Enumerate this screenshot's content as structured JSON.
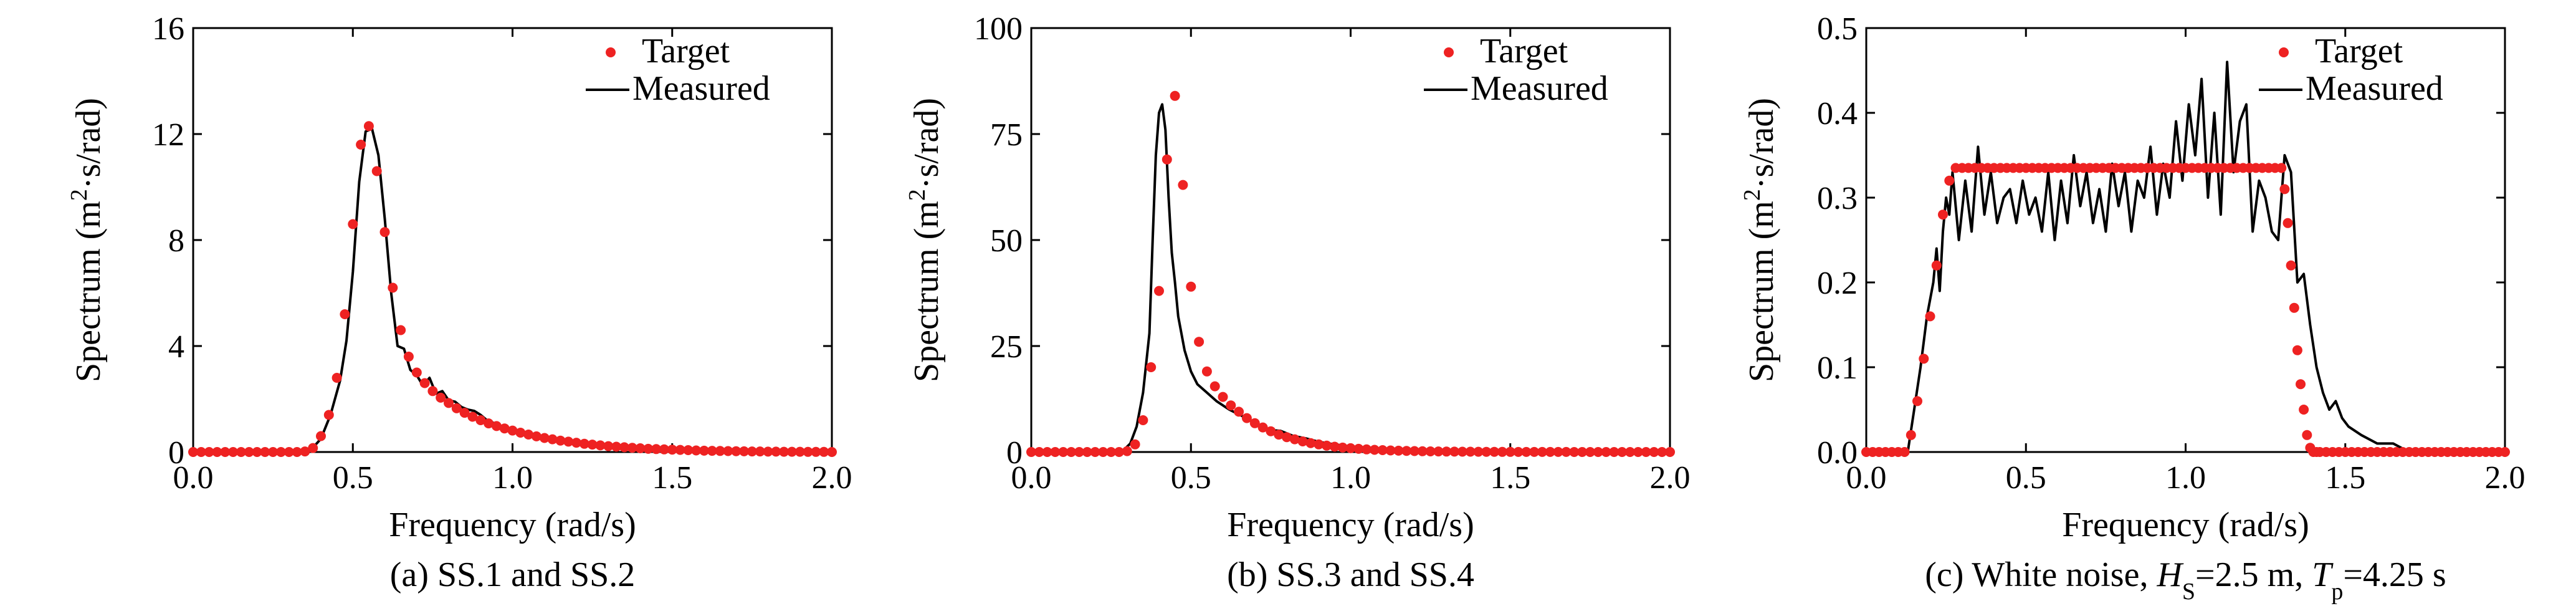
{
  "chart_data": [
    {
      "type": "line",
      "title": "",
      "caption": "(a) SS.1 and SS.2",
      "xlabel": "Frequency (rad/s)",
      "ylabel": {
        "pre": "Spectrum (m",
        "sup": "2",
        "post": "·s/rad)"
      },
      "xlim": [
        0,
        2.0
      ],
      "ylim": [
        0,
        16
      ],
      "xticks": [
        "0.0",
        "0.5",
        "1.0",
        "1.5",
        "2.0"
      ],
      "yticks": [
        "0",
        "4",
        "8",
        "12",
        "16"
      ],
      "legend": [
        "Target",
        "Measured"
      ],
      "legend_position": "top-right",
      "series": [
        {
          "name": "Target",
          "style": "dots",
          "x": [
            0.0,
            0.025,
            0.05,
            0.075,
            0.1,
            0.125,
            0.15,
            0.175,
            0.2,
            0.225,
            0.25,
            0.275,
            0.3,
            0.325,
            0.35,
            0.375,
            0.4,
            0.425,
            0.45,
            0.475,
            0.5,
            0.525,
            0.55,
            0.575,
            0.6,
            0.625,
            0.65,
            0.675,
            0.7,
            0.725,
            0.75,
            0.775,
            0.8,
            0.825,
            0.85,
            0.875,
            0.9,
            0.925,
            0.95,
            0.975,
            1.0,
            1.025,
            1.05,
            1.075,
            1.1,
            1.125,
            1.15,
            1.175,
            1.2,
            1.225,
            1.25,
            1.275,
            1.3,
            1.325,
            1.35,
            1.375,
            1.4,
            1.425,
            1.45,
            1.475,
            1.5,
            1.525,
            1.55,
            1.575,
            1.6,
            1.625,
            1.65,
            1.675,
            1.7,
            1.725,
            1.75,
            1.775,
            1.8,
            1.825,
            1.85,
            1.875,
            1.9,
            1.925,
            1.95,
            1.975,
            2.0
          ],
          "y": [
            0,
            0,
            0,
            0,
            0,
            0,
            0,
            0,
            0,
            0,
            0,
            0,
            0,
            0,
            0.02,
            0.15,
            0.6,
            1.4,
            2.8,
            5.2,
            8.6,
            11.6,
            12.3,
            10.6,
            8.3,
            6.2,
            4.6,
            3.6,
            3.0,
            2.6,
            2.3,
            2.05,
            1.85,
            1.65,
            1.48,
            1.33,
            1.2,
            1.08,
            0.98,
            0.89,
            0.81,
            0.73,
            0.66,
            0.59,
            0.53,
            0.48,
            0.43,
            0.39,
            0.35,
            0.31,
            0.28,
            0.25,
            0.22,
            0.2,
            0.18,
            0.16,
            0.14,
            0.12,
            0.11,
            0.1,
            0.09,
            0.08,
            0.07,
            0.06,
            0.05,
            0.045,
            0.04,
            0.035,
            0.03,
            0.025,
            0.02,
            0.02,
            0.015,
            0.015,
            0.01,
            0.01,
            0.01,
            0.005,
            0.005,
            0.005,
            0
          ]
        },
        {
          "name": "Measured",
          "style": "line",
          "x": [
            0.0,
            0.34,
            0.37,
            0.4,
            0.43,
            0.46,
            0.48,
            0.5,
            0.52,
            0.54,
            0.56,
            0.58,
            0.6,
            0.62,
            0.64,
            0.66,
            0.68,
            0.7,
            0.72,
            0.74,
            0.76,
            0.78,
            0.8,
            0.82,
            0.84,
            0.86,
            0.88,
            0.9,
            0.92,
            0.95,
            0.98,
            1.02,
            1.06,
            1.1,
            1.15,
            1.2,
            1.25,
            1.3,
            1.4,
            1.5,
            1.6,
            1.7,
            1.8,
            1.9,
            2.0
          ],
          "y": [
            0,
            0,
            0.1,
            0.5,
            1.4,
            2.7,
            4.2,
            6.8,
            10.2,
            12.1,
            12.2,
            11.2,
            8.8,
            6.0,
            4.0,
            3.9,
            3.1,
            2.9,
            2.5,
            2.8,
            2.2,
            2.3,
            1.95,
            1.9,
            1.7,
            1.6,
            1.55,
            1.4,
            1.2,
            1.05,
            0.9,
            0.75,
            0.6,
            0.5,
            0.38,
            0.3,
            0.22,
            0.17,
            0.1,
            0.06,
            0.03,
            0.02,
            0.01,
            0.0,
            0.0
          ]
        }
      ]
    },
    {
      "type": "line",
      "title": "",
      "caption": "(b) SS.3 and SS.4",
      "xlabel": "Frequency (rad/s)",
      "ylabel": {
        "pre": "Spectrum (m",
        "sup": "2",
        "post": "·s/rad)"
      },
      "xlim": [
        0,
        2.0
      ],
      "ylim": [
        0,
        100
      ],
      "xticks": [
        "0.0",
        "0.5",
        "1.0",
        "1.5",
        "2.0"
      ],
      "yticks": [
        "0",
        "25",
        "50",
        "75",
        "100"
      ],
      "legend": [
        "Target",
        "Measured"
      ],
      "legend_position": "top-right",
      "series": [
        {
          "name": "Target",
          "style": "dots",
          "x": [
            0.0,
            0.025,
            0.05,
            0.075,
            0.1,
            0.125,
            0.15,
            0.175,
            0.2,
            0.225,
            0.25,
            0.275,
            0.3,
            0.325,
            0.35,
            0.375,
            0.4,
            0.425,
            0.45,
            0.475,
            0.5,
            0.525,
            0.55,
            0.575,
            0.6,
            0.625,
            0.65,
            0.675,
            0.7,
            0.725,
            0.75,
            0.775,
            0.8,
            0.825,
            0.85,
            0.875,
            0.9,
            0.925,
            0.95,
            0.975,
            1.0,
            1.025,
            1.05,
            1.075,
            1.1,
            1.125,
            1.15,
            1.175,
            1.2,
            1.225,
            1.25,
            1.275,
            1.3,
            1.325,
            1.35,
            1.375,
            1.4,
            1.425,
            1.45,
            1.475,
            1.5,
            1.525,
            1.55,
            1.575,
            1.6,
            1.625,
            1.65,
            1.675,
            1.7,
            1.725,
            1.75,
            1.775,
            1.8,
            1.825,
            1.85,
            1.875,
            1.9,
            1.925,
            1.95,
            1.975,
            2.0
          ],
          "y": [
            0,
            0,
            0,
            0,
            0,
            0,
            0,
            0,
            0,
            0,
            0,
            0,
            0.2,
            1.8,
            7.5,
            20,
            38,
            69,
            84,
            63,
            39,
            26,
            19,
            15.5,
            13,
            11,
            9.5,
            8,
            6.8,
            5.8,
            4.9,
            4.1,
            3.5,
            3.0,
            2.5,
            2.1,
            1.8,
            1.5,
            1.25,
            1.05,
            0.9,
            0.75,
            0.62,
            0.52,
            0.44,
            0.37,
            0.31,
            0.26,
            0.22,
            0.18,
            0.15,
            0.13,
            0.11,
            0.09,
            0.08,
            0.07,
            0.06,
            0.05,
            0.04,
            0.03,
            0.03,
            0.02,
            0.02,
            0.02,
            0.01,
            0.01,
            0.01,
            0.01,
            0,
            0,
            0,
            0,
            0,
            0,
            0,
            0,
            0,
            0,
            0,
            0,
            0
          ]
        },
        {
          "name": "Measured",
          "style": "line",
          "x": [
            0.0,
            0.27,
            0.29,
            0.31,
            0.33,
            0.35,
            0.37,
            0.38,
            0.39,
            0.4,
            0.41,
            0.42,
            0.43,
            0.44,
            0.45,
            0.46,
            0.48,
            0.5,
            0.52,
            0.55,
            0.58,
            0.62,
            0.66,
            0.7,
            0.74,
            0.78,
            0.82,
            0.86,
            0.9,
            0.95,
            1.0,
            1.1,
            1.2,
            1.3,
            1.4,
            1.6,
            1.8,
            2.0
          ],
          "y": [
            0,
            0,
            0.5,
            2,
            6,
            14,
            28,
            50,
            70,
            80,
            82,
            76,
            60,
            47,
            40,
            32,
            24,
            19,
            16,
            14,
            12,
            10,
            8.5,
            6.8,
            5.2,
            5.0,
            3.8,
            3.2,
            2.4,
            1.8,
            1.3,
            0.8,
            0.5,
            0.3,
            0.2,
            0.1,
            0.05,
            0
          ]
        }
      ]
    },
    {
      "type": "line",
      "title": "",
      "caption": {
        "pre": "(c) White noise, ",
        "h": "H",
        "h_sub": "S",
        "mid": "=2.5 m, ",
        "t": "T",
        "t_sub": "p",
        "post": "=4.25 s"
      },
      "xlabel": "Frequency (rad/s)",
      "ylabel": {
        "pre": "Spectrum (m",
        "sup": "2",
        "post": "·s/rad)"
      },
      "xlim": [
        0,
        2.0
      ],
      "ylim": [
        0,
        0.5
      ],
      "xticks": [
        "0.0",
        "0.5",
        "1.0",
        "1.5",
        "2.0"
      ],
      "yticks": [
        "0.0",
        "0.1",
        "0.2",
        "0.3",
        "0.4",
        "0.5"
      ],
      "legend": [
        "Target",
        "Measured"
      ],
      "legend_position": "top-right",
      "series": [
        {
          "name": "Target",
          "style": "dots",
          "x": [
            0.0,
            0.02,
            0.04,
            0.06,
            0.08,
            0.1,
            0.12,
            0.14,
            0.16,
            0.18,
            0.2,
            0.22,
            0.24,
            0.26,
            0.28,
            0.3,
            0.32,
            0.34,
            0.36,
            0.38,
            0.4,
            0.42,
            0.44,
            0.46,
            0.48,
            0.5,
            0.52,
            0.54,
            0.56,
            0.58,
            0.6,
            0.62,
            0.64,
            0.66,
            0.68,
            0.7,
            0.72,
            0.74,
            0.76,
            0.78,
            0.8,
            0.82,
            0.84,
            0.86,
            0.88,
            0.9,
            0.92,
            0.94,
            0.96,
            0.98,
            1.0,
            1.02,
            1.04,
            1.06,
            1.08,
            1.1,
            1.12,
            1.14,
            1.16,
            1.18,
            1.2,
            1.22,
            1.24,
            1.26,
            1.28,
            1.3,
            1.31,
            1.32,
            1.33,
            1.34,
            1.35,
            1.36,
            1.37,
            1.38,
            1.39,
            1.4,
            1.41,
            1.42,
            1.44,
            1.46,
            1.48,
            1.5,
            1.52,
            1.54,
            1.56,
            1.58,
            1.6,
            1.62,
            1.64,
            1.66,
            1.68,
            1.7,
            1.72,
            1.74,
            1.76,
            1.78,
            1.8,
            1.82,
            1.84,
            1.86,
            1.88,
            1.9,
            1.92,
            1.94,
            1.96,
            1.98,
            2.0
          ],
          "y": [
            0,
            0,
            0,
            0,
            0,
            0,
            0,
            0.02,
            0.06,
            0.11,
            0.16,
            0.22,
            0.28,
            0.32,
            0.335,
            0.335,
            0.335,
            0.335,
            0.335,
            0.335,
            0.335,
            0.335,
            0.335,
            0.335,
            0.335,
            0.335,
            0.335,
            0.335,
            0.335,
            0.335,
            0.335,
            0.335,
            0.335,
            0.335,
            0.335,
            0.335,
            0.335,
            0.335,
            0.335,
            0.335,
            0.335,
            0.335,
            0.335,
            0.335,
            0.335,
            0.335,
            0.335,
            0.335,
            0.335,
            0.335,
            0.335,
            0.335,
            0.335,
            0.335,
            0.335,
            0.335,
            0.335,
            0.335,
            0.335,
            0.335,
            0.335,
            0.335,
            0.335,
            0.335,
            0.335,
            0.335,
            0.31,
            0.27,
            0.22,
            0.17,
            0.12,
            0.08,
            0.05,
            0.02,
            0.005,
            0,
            0,
            0,
            0,
            0,
            0,
            0,
            0,
            0,
            0,
            0,
            0,
            0,
            0,
            0,
            0,
            0,
            0,
            0,
            0,
            0,
            0,
            0,
            0,
            0,
            0,
            0,
            0,
            0,
            0,
            0,
            0
          ]
        },
        {
          "name": "Measured",
          "style": "line",
          "x": [
            0.0,
            0.13,
            0.15,
            0.17,
            0.19,
            0.21,
            0.22,
            0.23,
            0.24,
            0.25,
            0.26,
            0.27,
            0.29,
            0.31,
            0.33,
            0.35,
            0.37,
            0.39,
            0.41,
            0.43,
            0.45,
            0.47,
            0.49,
            0.51,
            0.53,
            0.55,
            0.57,
            0.59,
            0.61,
            0.63,
            0.65,
            0.67,
            0.69,
            0.71,
            0.73,
            0.75,
            0.77,
            0.79,
            0.81,
            0.83,
            0.85,
            0.87,
            0.89,
            0.91,
            0.93,
            0.95,
            0.97,
            0.99,
            1.01,
            1.03,
            1.05,
            1.07,
            1.09,
            1.11,
            1.13,
            1.15,
            1.17,
            1.19,
            1.21,
            1.23,
            1.25,
            1.27,
            1.29,
            1.31,
            1.33,
            1.35,
            1.37,
            1.39,
            1.41,
            1.43,
            1.45,
            1.47,
            1.49,
            1.51,
            1.55,
            1.6,
            1.65,
            1.7,
            1.8,
            1.9,
            2.0
          ],
          "y": [
            0,
            0,
            0.05,
            0.1,
            0.16,
            0.2,
            0.24,
            0.19,
            0.26,
            0.3,
            0.28,
            0.33,
            0.25,
            0.32,
            0.26,
            0.36,
            0.28,
            0.33,
            0.27,
            0.3,
            0.31,
            0.27,
            0.32,
            0.28,
            0.3,
            0.26,
            0.33,
            0.25,
            0.32,
            0.27,
            0.35,
            0.29,
            0.33,
            0.27,
            0.31,
            0.26,
            0.34,
            0.29,
            0.33,
            0.26,
            0.32,
            0.3,
            0.36,
            0.28,
            0.34,
            0.3,
            0.39,
            0.32,
            0.41,
            0.35,
            0.44,
            0.3,
            0.4,
            0.28,
            0.46,
            0.33,
            0.39,
            0.41,
            0.26,
            0.32,
            0.3,
            0.26,
            0.25,
            0.35,
            0.33,
            0.2,
            0.21,
            0.15,
            0.1,
            0.07,
            0.05,
            0.06,
            0.04,
            0.03,
            0.02,
            0.01,
            0.01,
            0.0,
            0.0,
            0.0,
            0.0
          ]
        }
      ]
    }
  ]
}
